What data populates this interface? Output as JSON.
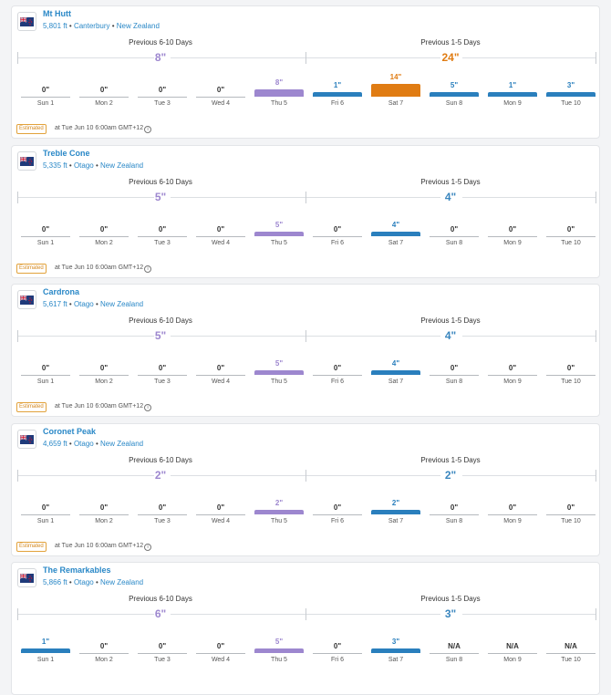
{
  "labels": {
    "prev_6_10": "Previous 6-10 Days",
    "prev_1_5": "Previous 1-5 Days"
  },
  "days": [
    "Sun 1",
    "Mon 2",
    "Tue 3",
    "Wed 4",
    "Thu 5",
    "Fri 6",
    "Sat 7",
    "Sun 8",
    "Mon 9",
    "Tue 10"
  ],
  "estimated": {
    "badge": "Estimated",
    "text": "at Tue Jun 10 6:00am GMT+12"
  },
  "colors": {
    "purple": "#9d87cf",
    "blue": "#2a7fbd",
    "orange": "#e07c13",
    "total_purple": "#9d87cf",
    "total_blue": "#3a86be",
    "total_orange": "#e07c13"
  },
  "resorts": [
    {
      "name": "Mt Hutt",
      "elevation": "5,801 ft",
      "region": "Canterbury",
      "country": "New Zealand",
      "total_6_10": "8\"",
      "total_6_10_color": "purple",
      "total_1_5": "24\"",
      "total_1_5_color": "orange",
      "values": [
        "0\"",
        "0\"",
        "0\"",
        "0\"",
        "8\"",
        "1\"",
        "14\"",
        "5\"",
        "1\"",
        "3\""
      ],
      "inches": [
        0,
        0,
        0,
        0,
        8,
        1,
        14,
        5,
        1,
        3
      ],
      "colors": [
        null,
        null,
        null,
        null,
        "purple",
        "blue",
        "orange",
        "blue",
        "blue",
        "blue"
      ],
      "show_estimated": true
    },
    {
      "name": "Treble Cone",
      "elevation": "5,335 ft",
      "region": "Otago",
      "country": "New Zealand",
      "total_6_10": "5\"",
      "total_6_10_color": "purple",
      "total_1_5": "4\"",
      "total_1_5_color": "blue",
      "values": [
        "0\"",
        "0\"",
        "0\"",
        "0\"",
        "5\"",
        "0\"",
        "4\"",
        "0\"",
        "0\"",
        "0\""
      ],
      "inches": [
        0,
        0,
        0,
        0,
        5,
        0,
        4,
        0,
        0,
        0
      ],
      "colors": [
        null,
        null,
        null,
        null,
        "purple",
        null,
        "blue",
        null,
        null,
        null
      ],
      "show_estimated": true
    },
    {
      "name": "Cardrona",
      "elevation": "5,617 ft",
      "region": "Otago",
      "country": "New Zealand",
      "total_6_10": "5\"",
      "total_6_10_color": "purple",
      "total_1_5": "4\"",
      "total_1_5_color": "blue",
      "values": [
        "0\"",
        "0\"",
        "0\"",
        "0\"",
        "5\"",
        "0\"",
        "4\"",
        "0\"",
        "0\"",
        "0\""
      ],
      "inches": [
        0,
        0,
        0,
        0,
        5,
        0,
        4,
        0,
        0,
        0
      ],
      "colors": [
        null,
        null,
        null,
        null,
        "purple",
        null,
        "blue",
        null,
        null,
        null
      ],
      "show_estimated": true
    },
    {
      "name": "Coronet Peak",
      "elevation": "4,659 ft",
      "region": "Otago",
      "country": "New Zealand",
      "total_6_10": "2\"",
      "total_6_10_color": "purple",
      "total_1_5": "2\"",
      "total_1_5_color": "blue",
      "values": [
        "0\"",
        "0\"",
        "0\"",
        "0\"",
        "2\"",
        "0\"",
        "2\"",
        "0\"",
        "0\"",
        "0\""
      ],
      "inches": [
        0,
        0,
        0,
        0,
        2,
        0,
        2,
        0,
        0,
        0
      ],
      "colors": [
        null,
        null,
        null,
        null,
        "purple",
        null,
        "blue",
        null,
        null,
        null
      ],
      "show_estimated": true
    },
    {
      "name": "The Remarkables",
      "elevation": "5,866 ft",
      "region": "Otago",
      "country": "New Zealand",
      "total_6_10": "6\"",
      "total_6_10_color": "purple",
      "total_1_5": "3\"",
      "total_1_5_color": "blue",
      "values": [
        "1\"",
        "0\"",
        "0\"",
        "0\"",
        "5\"",
        "0\"",
        "3\"",
        "N/A",
        "N/A",
        "N/A"
      ],
      "inches": [
        1,
        0,
        0,
        0,
        5,
        0,
        3,
        0,
        0,
        0
      ],
      "colors": [
        "blue",
        null,
        null,
        null,
        "purple",
        null,
        "blue",
        null,
        null,
        null
      ],
      "show_estimated": false
    }
  ]
}
